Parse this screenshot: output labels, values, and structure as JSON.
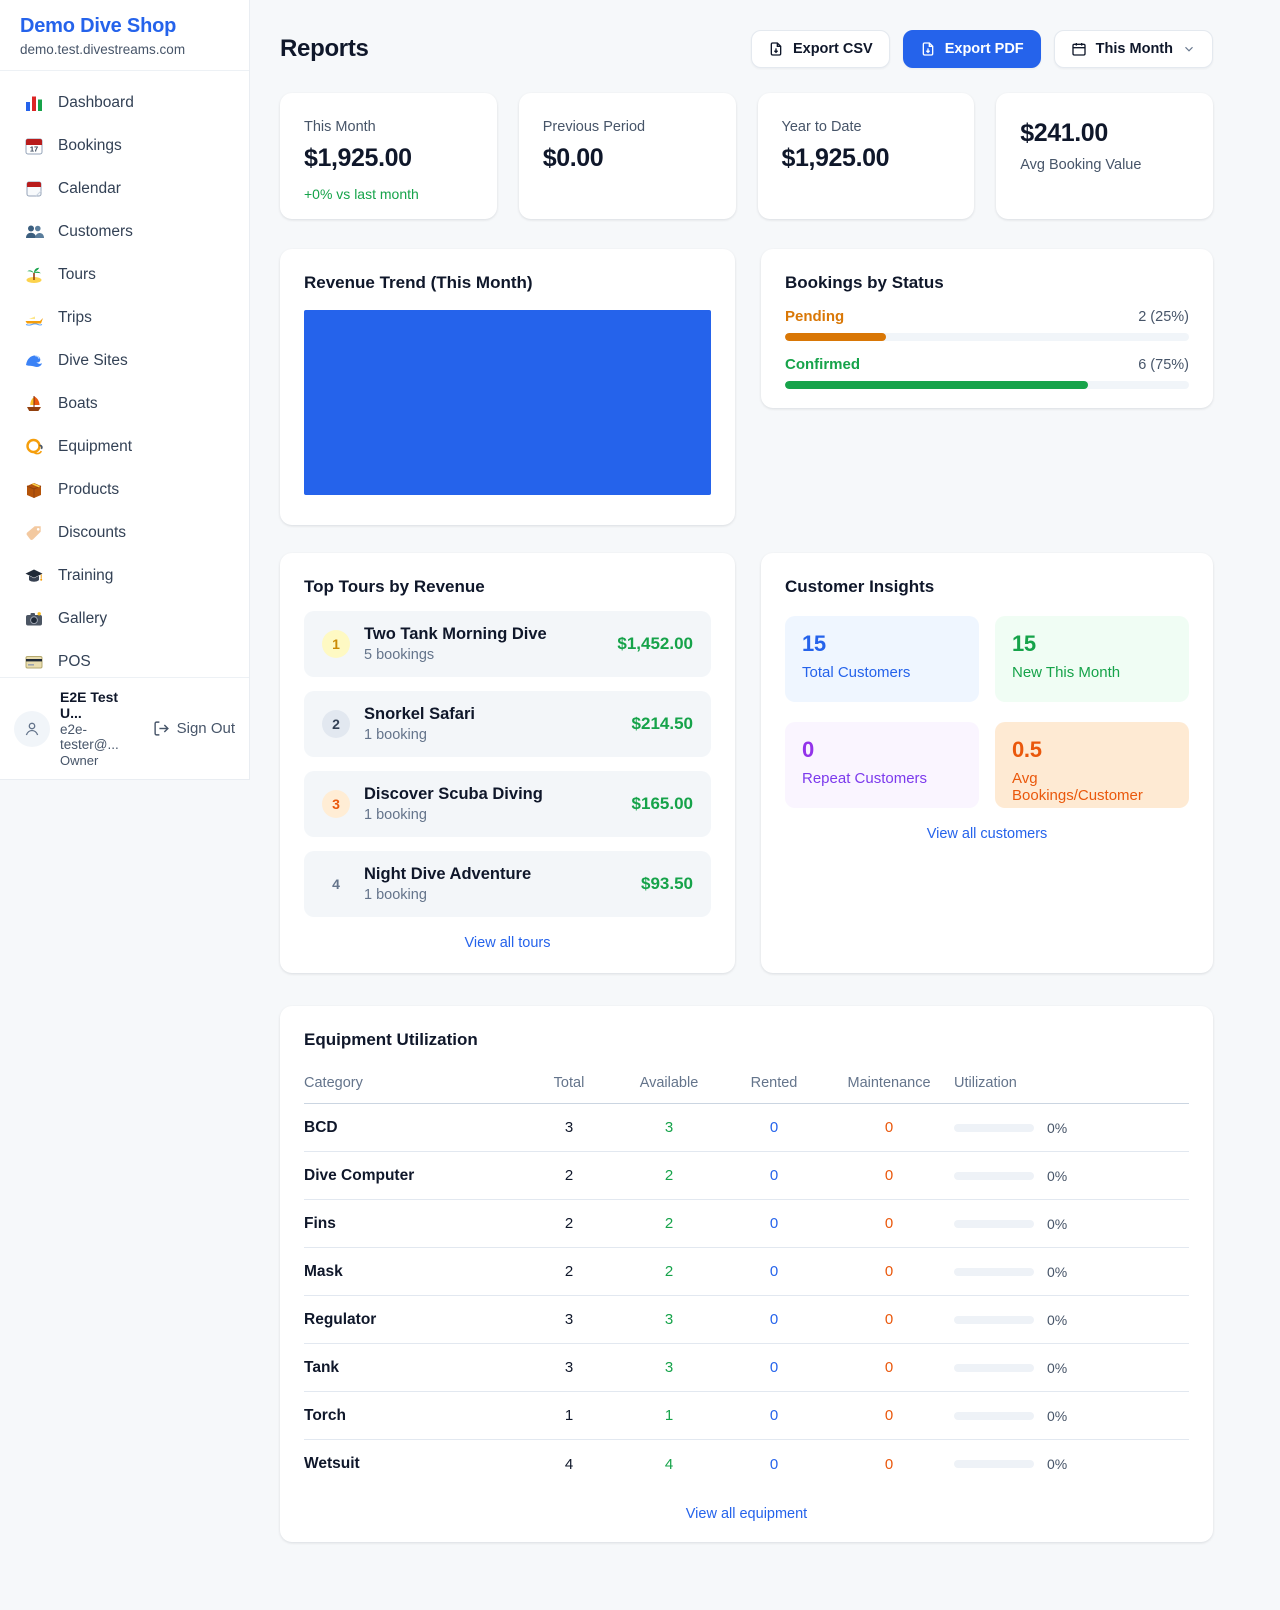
{
  "colors": {
    "accent": "#2563eb",
    "success": "#16a34a",
    "pending_orange": "#d97706",
    "maintenance_orange": "#ea580c",
    "purple": "#9333ea"
  },
  "sidebar": {
    "brand": {
      "name": "Demo Dive Shop",
      "domain": "demo.test.divestreams.com"
    },
    "nav": [
      {
        "icon": "bar-chart",
        "label": "Dashboard"
      },
      {
        "icon": "calendar-date",
        "label": "Bookings"
      },
      {
        "icon": "tear-off-calendar",
        "label": "Calendar"
      },
      {
        "icon": "people",
        "label": "Customers"
      },
      {
        "icon": "desert-island",
        "label": "Tours"
      },
      {
        "icon": "speedboat",
        "label": "Trips"
      },
      {
        "icon": "water-wave",
        "label": "Dive Sites"
      },
      {
        "icon": "sailboat",
        "label": "Boats"
      },
      {
        "icon": "diving-mask",
        "label": "Equipment"
      },
      {
        "icon": "package",
        "label": "Products"
      },
      {
        "icon": "label-tag",
        "label": "Discounts"
      },
      {
        "icon": "graduation-cap",
        "label": "Training"
      },
      {
        "icon": "camera",
        "label": "Gallery"
      },
      {
        "icon": "credit-card",
        "label": "POS"
      }
    ],
    "user": {
      "name": "E2E Test U...",
      "email": "e2e-tester@...",
      "role": "Owner",
      "sign_out": "Sign Out"
    }
  },
  "header": {
    "title": "Reports",
    "export_csv": "Export CSV",
    "export_pdf": "Export PDF",
    "period": "This Month"
  },
  "stats": [
    {
      "label": "This Month",
      "value": "$1,925.00",
      "delta": "+0% vs last month"
    },
    {
      "label": "Previous Period",
      "value": "$0.00"
    },
    {
      "label": "Year to Date",
      "value": "$1,925.00"
    },
    {
      "value": "$241.00",
      "label": "Avg Booking Value"
    }
  ],
  "revenue_trend": {
    "title": "Revenue Trend (This Month)",
    "chart_data": {
      "type": "bar",
      "note": "single solid full-width blue bar, no axes or labels visible",
      "bar_color": "#2563eb"
    }
  },
  "bookings_by_status": {
    "title": "Bookings by Status",
    "rows": [
      {
        "label": "Pending",
        "count": "2 (25%)",
        "pct": 25
      },
      {
        "label": "Confirmed",
        "count": "6 (75%)",
        "pct": 75
      }
    ]
  },
  "top_tours": {
    "title": "Top Tours by Revenue",
    "items": [
      {
        "rank": "1",
        "name": "Two Tank Morning Dive",
        "bookings": "5 bookings",
        "revenue": "$1,452.00"
      },
      {
        "rank": "2",
        "name": "Snorkel Safari",
        "bookings": "1 booking",
        "revenue": "$214.50"
      },
      {
        "rank": "3",
        "name": "Discover Scuba Diving",
        "bookings": "1 booking",
        "revenue": "$165.00"
      },
      {
        "rank": "4",
        "name": "Night Dive Adventure",
        "bookings": "1 booking",
        "revenue": "$93.50"
      }
    ],
    "view_all": "View all tours"
  },
  "customer_insights": {
    "title": "Customer Insights",
    "tiles": [
      {
        "value": "15",
        "label": "Total Customers"
      },
      {
        "value": "15",
        "label": "New This Month"
      },
      {
        "value": "0",
        "label": "Repeat Customers"
      },
      {
        "value": "0.5",
        "label": "Avg Bookings/Customer"
      }
    ],
    "view_all": "View all customers"
  },
  "equipment": {
    "title": "Equipment Utilization",
    "columns": [
      "Category",
      "Total",
      "Available",
      "Rented",
      "Maintenance",
      "Utilization"
    ],
    "rows": [
      {
        "category": "BCD",
        "total": "3",
        "available": "3",
        "rented": "0",
        "maintenance": "0",
        "utilization": "0%",
        "utilization_pct": 0
      },
      {
        "category": "Dive Computer",
        "total": "2",
        "available": "2",
        "rented": "0",
        "maintenance": "0",
        "utilization": "0%",
        "utilization_pct": 0
      },
      {
        "category": "Fins",
        "total": "2",
        "available": "2",
        "rented": "0",
        "maintenance": "0",
        "utilization": "0%",
        "utilization_pct": 0
      },
      {
        "category": "Mask",
        "total": "2",
        "available": "2",
        "rented": "0",
        "maintenance": "0",
        "utilization": "0%",
        "utilization_pct": 0
      },
      {
        "category": "Regulator",
        "total": "3",
        "available": "3",
        "rented": "0",
        "maintenance": "0",
        "utilization": "0%",
        "utilization_pct": 0
      },
      {
        "category": "Tank",
        "total": "3",
        "available": "3",
        "rented": "0",
        "maintenance": "0",
        "utilization": "0%",
        "utilization_pct": 0
      },
      {
        "category": "Torch",
        "total": "1",
        "available": "1",
        "rented": "0",
        "maintenance": "0",
        "utilization": "0%",
        "utilization_pct": 0
      },
      {
        "category": "Wetsuit",
        "total": "4",
        "available": "4",
        "rented": "0",
        "maintenance": "0",
        "utilization": "0%",
        "utilization_pct": 0
      }
    ],
    "view_all": "View all equipment"
  }
}
